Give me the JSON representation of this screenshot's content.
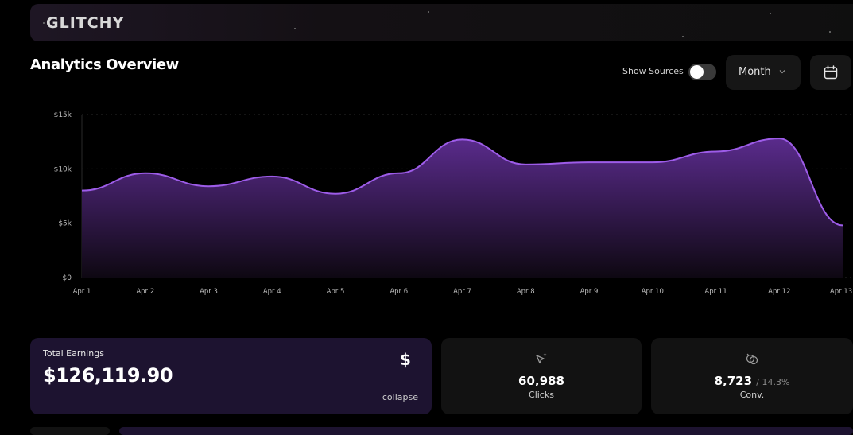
{
  "app": {
    "logo": "GLITCHY"
  },
  "header": {
    "title": "Analytics Overview",
    "show_sources_label": "Show Sources",
    "show_sources_on": false,
    "period_select": "Month"
  },
  "chart_data": {
    "type": "area",
    "categories": [
      "Apr 1",
      "Apr 2",
      "Apr 3",
      "Apr 4",
      "Apr 5",
      "Apr 6",
      "Apr 7",
      "Apr 8",
      "Apr 9",
      "Apr 10",
      "Apr 11",
      "Apr 12",
      "Apr 13"
    ],
    "values": [
      8000,
      9600,
      8400,
      9300,
      7700,
      9600,
      12700,
      10400,
      10600,
      10600,
      11600,
      12800,
      4800
    ],
    "ylim": [
      0,
      15000
    ],
    "yticks": [
      "$0",
      "$5k",
      "$10k",
      "$15k"
    ],
    "grid": true,
    "colors": {
      "line": "#9d5ce8",
      "fill_top": "#5a2b8c",
      "fill_bottom": "#0e0812"
    }
  },
  "cards": {
    "earnings": {
      "label": "Total Earnings",
      "value": "$126,119.90",
      "icon": "$",
      "action": "collapse"
    },
    "clicks": {
      "value": "60,988",
      "label": "Clicks"
    },
    "conversions": {
      "value": "8,723",
      "sub": "/ 14.3%",
      "label": "Conv."
    }
  }
}
